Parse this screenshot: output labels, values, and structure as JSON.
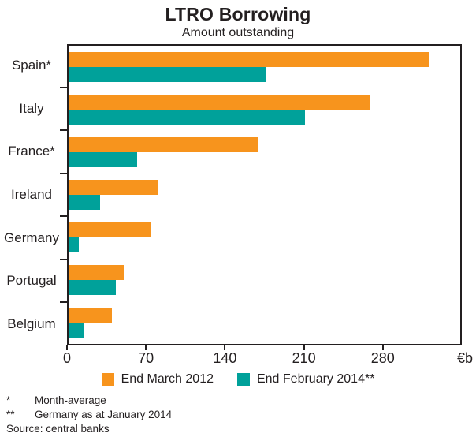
{
  "chart_data": {
    "type": "bar",
    "orientation": "horizontal",
    "title": "LTRO Borrowing",
    "subtitle": "Amount outstanding",
    "categories": [
      "Spain*",
      "Italy",
      "France*",
      "Ireland",
      "Germany",
      "Portugal",
      "Belgium"
    ],
    "series": [
      {
        "name": "End March 2012",
        "color": "#F7941D",
        "values": [
          322,
          270,
          170,
          80,
          73,
          49,
          39
        ]
      },
      {
        "name": "End February 2014**",
        "color": "#00A19A",
        "values": [
          176,
          211,
          61,
          28,
          9,
          42,
          14
        ]
      }
    ],
    "xlabel": "€b",
    "xticks": [
      0,
      70,
      140,
      210,
      280
    ],
    "xlim": [
      0,
      350
    ],
    "grid": false,
    "legend_position": "bottom"
  },
  "footnotes": [
    {
      "marker": "*",
      "text": "Month-average"
    },
    {
      "marker": "**",
      "text": "Germany as at January 2014"
    },
    {
      "marker": "",
      "text": "Source: central banks"
    }
  ]
}
